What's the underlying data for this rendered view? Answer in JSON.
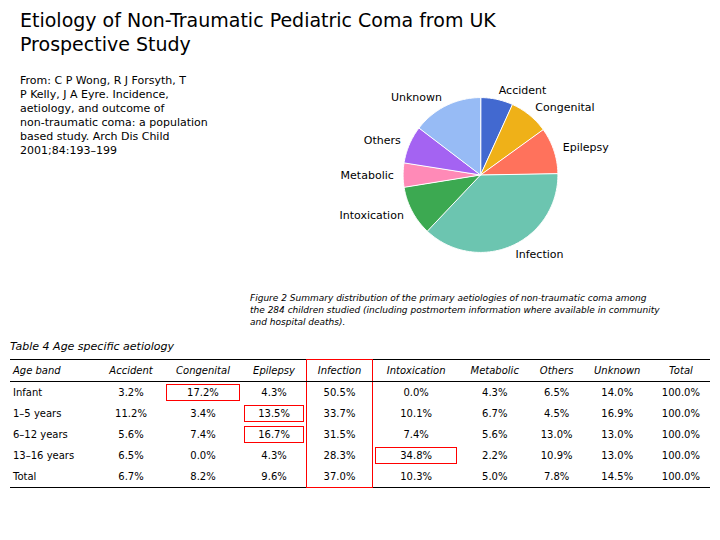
{
  "chart_data": {
    "type": "pie",
    "title": "Etiology of Non-Traumatic Pediatric Coma from UK\nProspective Study",
    "subtitle": "From: C P Wong, R J Forsyth, T\nP Kelly, J A Eyre. Incidence,\naetiology, and outcome of\nnon-traumatic coma: a population\nbased study.  Arch Dis Child\n2001;84:193–199",
    "caption": "Figure 2   Summary distribution of the primary aetiologies of non-traumatic coma among\nthe 284 children studied (including postmortem information where available in community\nand hospital deaths).",
    "categories": [
      "Accident",
      "Congenital",
      "Epilepsy",
      "Infection",
      "Intoxication",
      "Metabolic",
      "Others",
      "Unknown"
    ],
    "values": [
      6.7,
      8.2,
      9.6,
      37.0,
      10.3,
      5.0,
      7.8,
      14.5
    ],
    "table": {
      "title": "Table 4   Age specific aetiology",
      "headers": [
        "Age band",
        "Accident",
        "Congenital",
        "Epilepsy",
        "Infection",
        "Intoxication",
        "Metabolic",
        "Others",
        "Unknown",
        "Total"
      ],
      "rows": [
        [
          "Infant",
          "3.2%",
          "17.2%",
          "4.3%",
          "50.5%",
          "0.0%",
          "4.3%",
          "6.5%",
          "14.0%",
          "100.0%"
        ],
        [
          "1–5 years",
          "11.2%",
          "3.4%",
          "13.5%",
          "33.7%",
          "10.1%",
          "6.7%",
          "4.5%",
          "16.9%",
          "100.0%"
        ],
        [
          "6–12 years",
          "5.6%",
          "7.4%",
          "16.7%",
          "31.5%",
          "7.4%",
          "5.6%",
          "13.0%",
          "13.0%",
          "100.0%"
        ],
        [
          "13–16 years",
          "6.5%",
          "0.0%",
          "4.3%",
          "28.3%",
          "34.8%",
          "2.2%",
          "10.9%",
          "13.0%",
          "100.0%"
        ],
        [
          "Total",
          "6.7%",
          "8.2%",
          "9.6%",
          "37.0%",
          "10.3%",
          "5.0%",
          "7.8%",
          "14.5%",
          "100.0%"
        ]
      ],
      "highlight_column": "Infection",
      "highlight_cells": [
        [
          0,
          2
        ],
        [
          1,
          3
        ],
        [
          2,
          3
        ],
        [
          3,
          5
        ]
      ],
      "highlight_color": "#ff0000"
    }
  }
}
